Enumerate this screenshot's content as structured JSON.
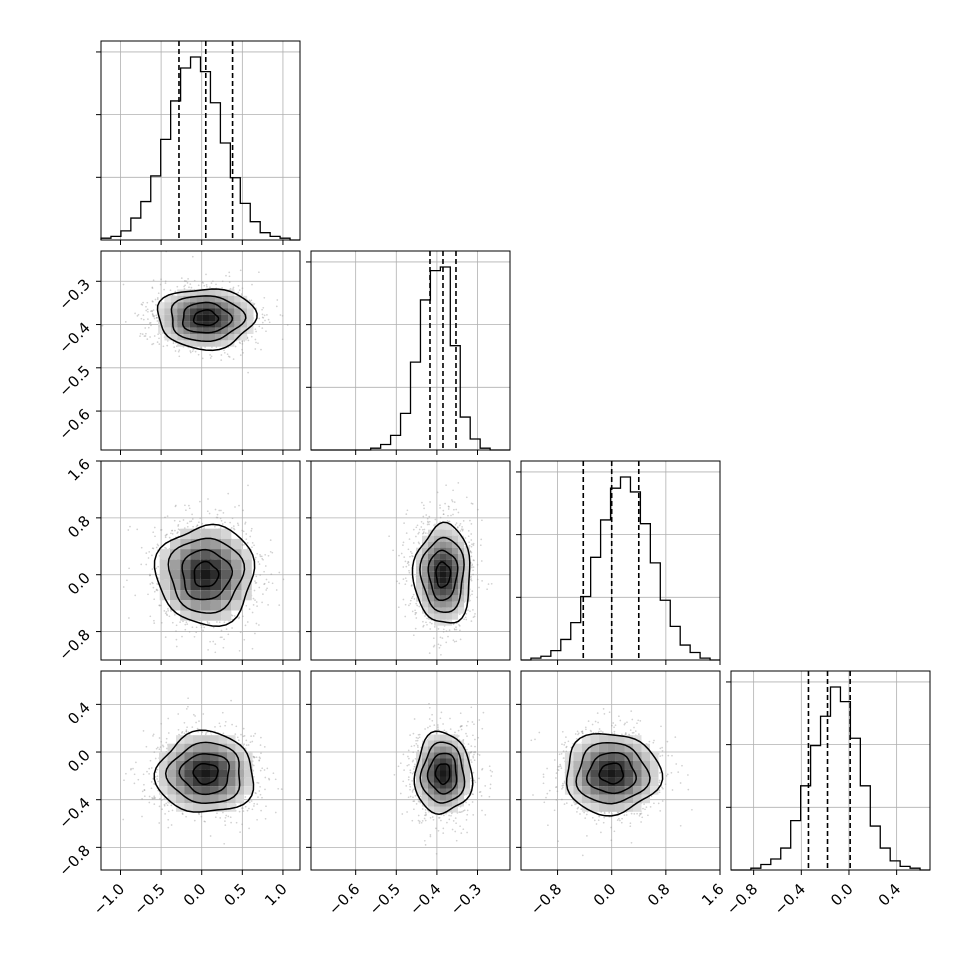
{
  "chart_data": {
    "type": "corner",
    "grid": true,
    "n_parameters": 4,
    "x_ranges": [
      [
        -1.24,
        1.21
      ],
      [
        -0.71,
        -0.22
      ],
      [
        -1.34,
        1.6
      ],
      [
        -0.99,
        0.68
      ]
    ],
    "y_ranges": [
      null,
      [
        -0.69,
        -0.23
      ],
      [
        -1.2,
        1.6
      ],
      [
        -0.99,
        0.68
      ]
    ],
    "x_ticks": [
      {
        "values": [
          -1.0,
          -0.5,
          0.0,
          0.5,
          1.0
        ],
        "labels": [
          "−1.0",
          "−0.5",
          "0.0",
          "0.5",
          "1.0"
        ]
      },
      {
        "values": [
          -0.6,
          -0.5,
          -0.4,
          -0.3
        ],
        "labels": [
          "−0.6",
          "−0.5",
          "−0.4",
          "−0.3"
        ]
      },
      {
        "values": [
          -0.8,
          0.0,
          0.8,
          1.6
        ],
        "labels": [
          "−0.8",
          "0.0",
          "0.8",
          "1.6"
        ]
      },
      {
        "values": [
          -0.8,
          -0.4,
          0.0,
          0.4
        ],
        "labels": [
          "−0.8",
          "−0.4",
          "0.0",
          "0.4"
        ]
      }
    ],
    "y_ticks": [
      null,
      {
        "values": [
          -0.3,
          -0.4,
          -0.5,
          -0.6
        ],
        "labels": [
          "−0.3",
          "−0.4",
          "−0.5",
          "−0.6"
        ]
      },
      {
        "values": [
          1.6,
          0.8,
          0.0,
          -0.8
        ],
        "labels": [
          "1.6",
          "0.8",
          "0.0",
          "−0.8"
        ]
      },
      {
        "values": [
          0.4,
          0.0,
          -0.4,
          -0.8
        ],
        "labels": [
          "0.4",
          "0.0",
          "−0.4",
          "−0.8"
        ]
      }
    ],
    "histograms": [
      {
        "parameter": 0,
        "bin_edges": [
          -1.24,
          1.21
        ],
        "counts": [
          1,
          2,
          5,
          12,
          21,
          35,
          55,
          76,
          94,
          100,
          92,
          75,
          53,
          34,
          20,
          10,
          4,
          2,
          1,
          0
        ],
        "quantiles": [
          -0.28,
          0.05,
          0.38
        ]
      },
      {
        "parameter": 1,
        "bin_edges": [
          -0.71,
          -0.22
        ],
        "counts": [
          0,
          0,
          0,
          0,
          0,
          0,
          1,
          3,
          8,
          20,
          48,
          82,
          98,
          100,
          57,
          18,
          6,
          1,
          0,
          0
        ],
        "quantiles": [
          -0.417,
          -0.385,
          -0.353
        ]
      },
      {
        "parameter": 2,
        "bin_edges": [
          -1.34,
          1.6
        ],
        "counts": [
          0,
          1,
          2,
          5,
          11,
          20,
          34,
          55,
          75,
          92,
          98,
          90,
          73,
          52,
          32,
          18,
          8,
          4,
          1,
          0
        ],
        "quantiles": [
          -0.42,
          0.0,
          0.4
        ]
      },
      {
        "parameter": 3,
        "bin_edges": [
          -0.99,
          0.68
        ],
        "counts": [
          0,
          0,
          1,
          3,
          6,
          12,
          27,
          46,
          68,
          84,
          100,
          92,
          72,
          46,
          24,
          12,
          5,
          2,
          1,
          0
        ],
        "quantiles": [
          -0.34,
          -0.18,
          0.01
        ]
      }
    ],
    "scatter_panels": [
      {
        "x_param": 0,
        "y_param": 1,
        "x_mean": 0.05,
        "x_sd": 0.3,
        "y_mean": -0.385,
        "y_sd": 0.035
      },
      {
        "x_param": 0,
        "y_param": 2,
        "x_mean": 0.05,
        "x_sd": 0.3,
        "y_mean": 0.0,
        "y_sd": 0.35
      },
      {
        "x_param": 1,
        "y_param": 2,
        "x_mean": -0.385,
        "x_sd": 0.035,
        "y_mean": 0.0,
        "y_sd": 0.35
      },
      {
        "x_param": 0,
        "y_param": 3,
        "x_mean": 0.05,
        "x_sd": 0.3,
        "y_mean": -0.18,
        "y_sd": 0.17
      },
      {
        "x_param": 1,
        "y_param": 3,
        "x_mean": -0.385,
        "x_sd": 0.035,
        "y_mean": -0.18,
        "y_sd": 0.17
      },
      {
        "x_param": 2,
        "y_param": 3,
        "x_mean": 0.0,
        "x_sd": 0.35,
        "y_mean": -0.18,
        "y_sd": 0.17
      }
    ],
    "contour_levels_sigma": [
      0.5,
      1.0,
      1.5,
      2.0
    ],
    "colors": {
      "frame": "#000000",
      "grid": "#b0b0b0",
      "points": "#9a9a9a",
      "contour": "#000000",
      "density_max": "#000000"
    }
  }
}
